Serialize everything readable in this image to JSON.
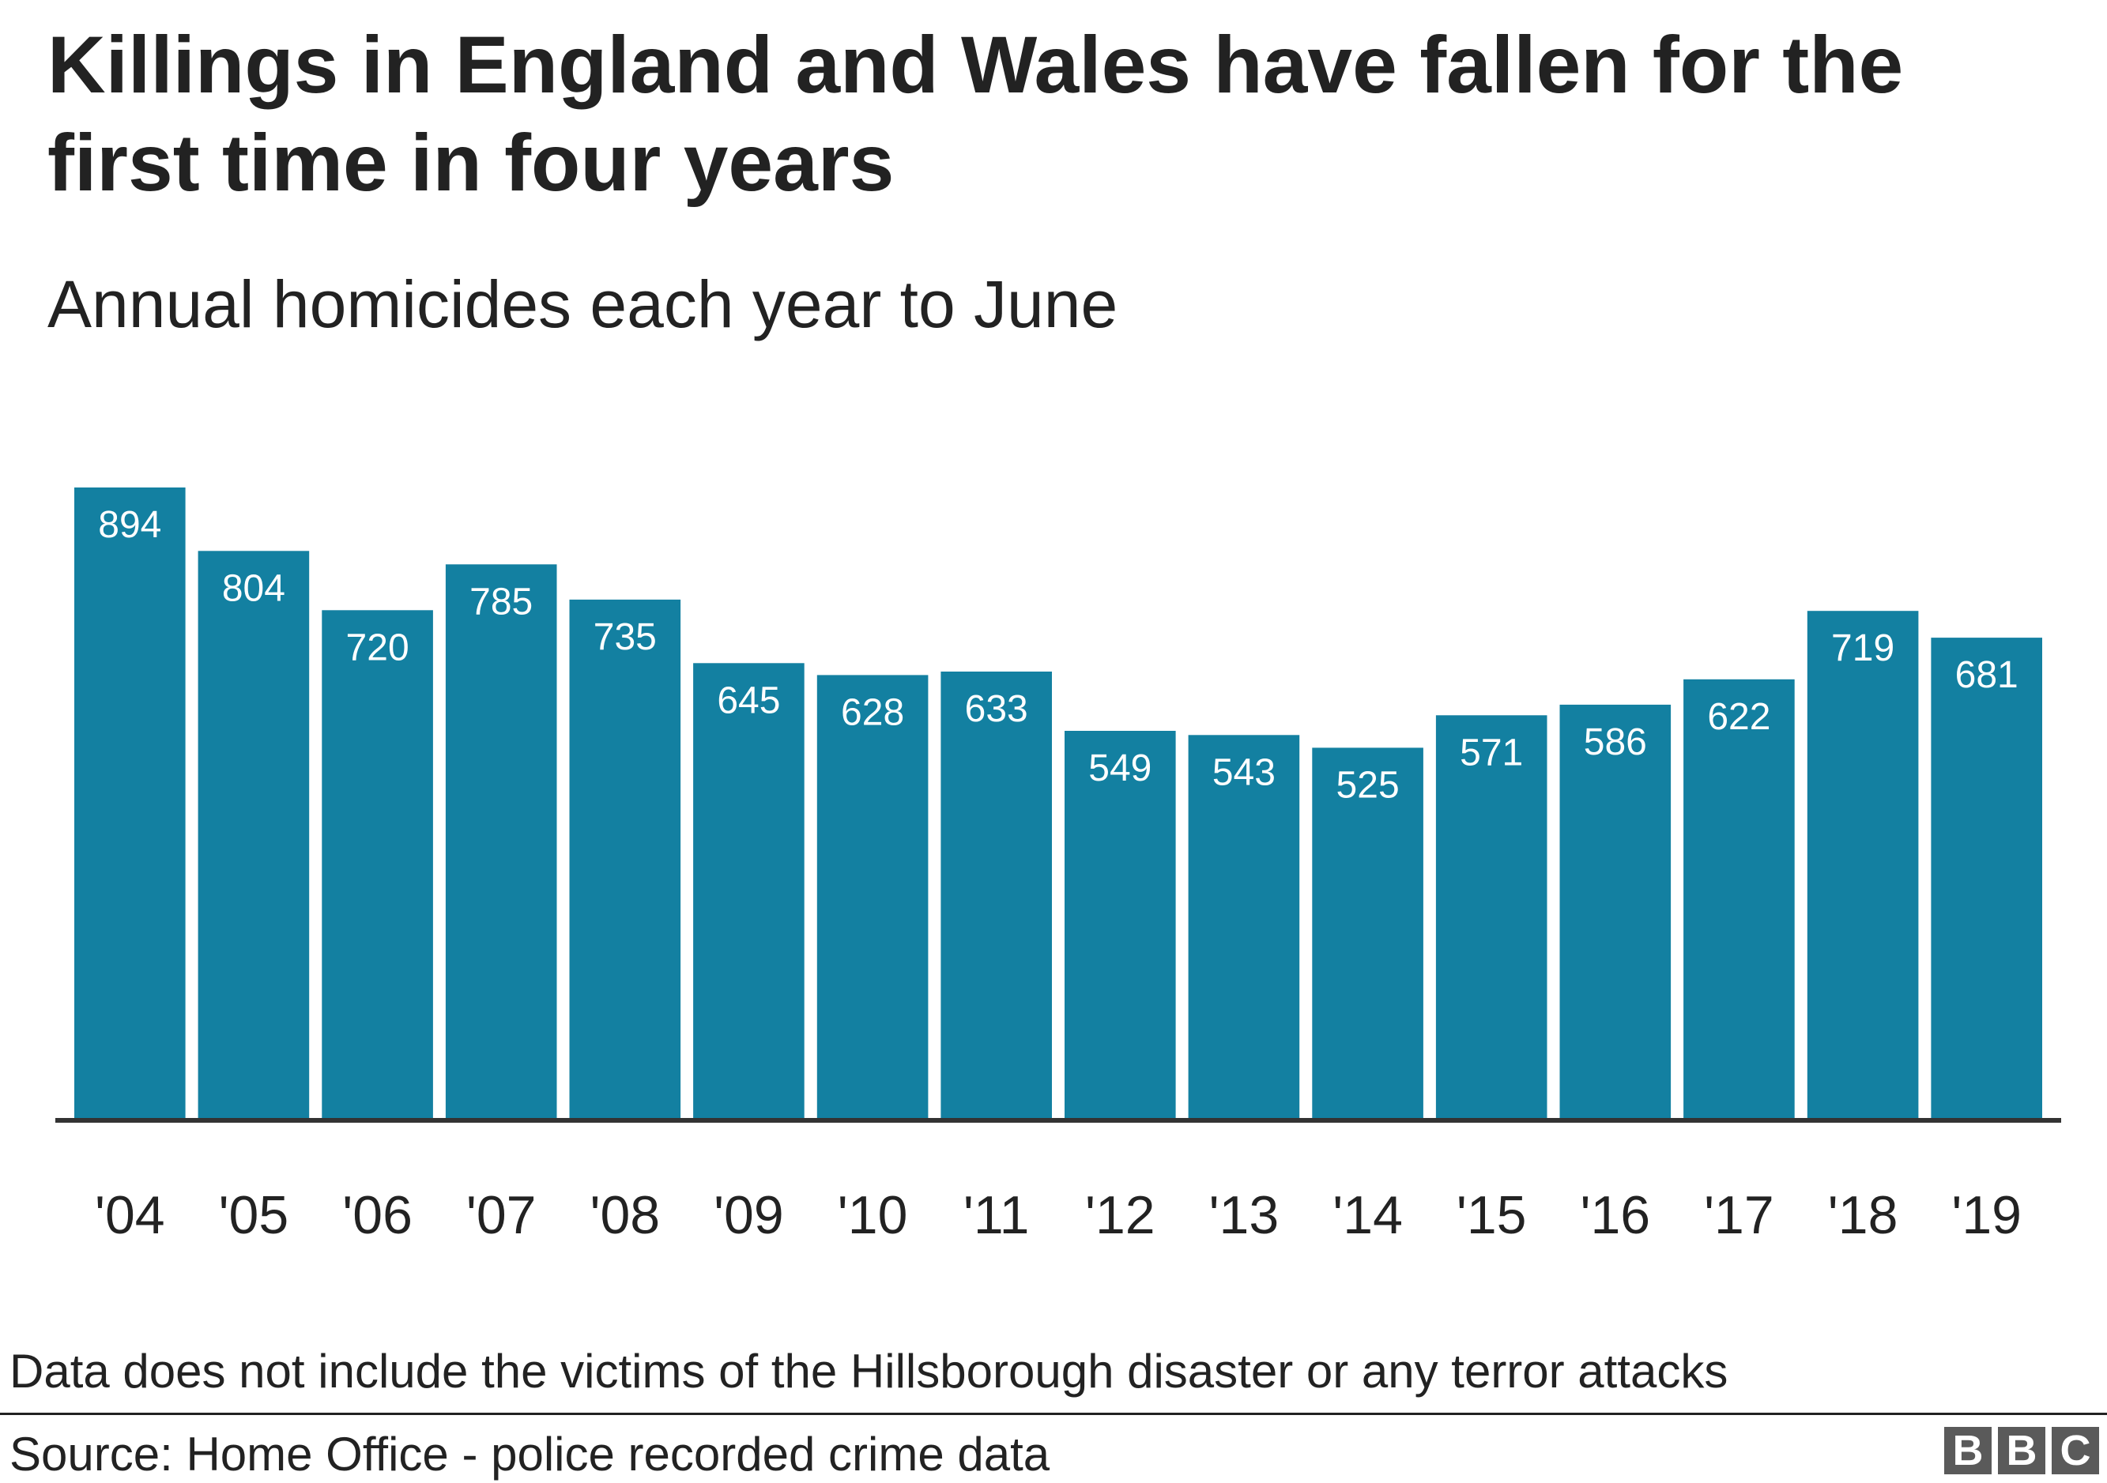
{
  "header": {
    "title": "Killings in England and Wales have fallen for the first time in four years",
    "subtitle": "Annual homicides each year to June"
  },
  "chart_data": {
    "type": "bar",
    "categories": [
      "'04",
      "'05",
      "'06",
      "'07",
      "'08",
      "'09",
      "'10",
      "'11",
      "'12",
      "'13",
      "'14",
      "'15",
      "'16",
      "'17",
      "'18",
      "'19"
    ],
    "values": [
      894,
      804,
      720,
      785,
      735,
      645,
      628,
      633,
      549,
      543,
      525,
      571,
      586,
      622,
      719,
      681
    ],
    "title": "Killings in England and Wales have fallen for the first time in four years",
    "subtitle": "Annual homicides each year to June",
    "xlabel": "",
    "ylabel": "",
    "ylim": [
      0,
      894
    ],
    "grid": false,
    "legend": "none",
    "data_labels": true,
    "bar_color": "#1380a1",
    "axis_color": "#333333"
  },
  "footer": {
    "note": "Data does not include the victims of the Hillsborough disaster or any terror attacks",
    "source": "Source: Home Office - police recorded crime data",
    "logo_letters": [
      "B",
      "B",
      "C"
    ]
  }
}
